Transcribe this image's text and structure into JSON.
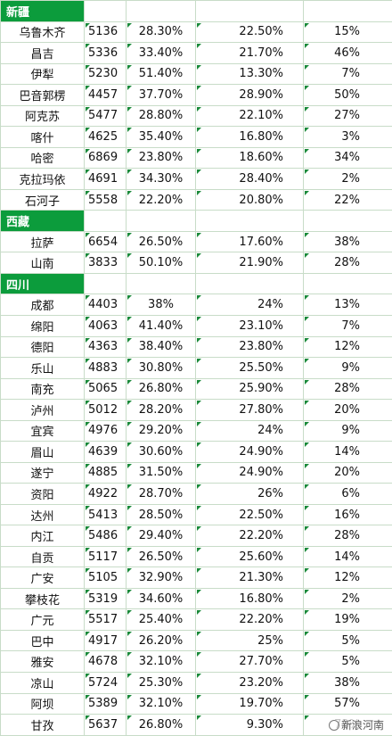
{
  "regions": [
    {
      "name": "新疆",
      "rows": [
        [
          "乌鲁木齐",
          "5136",
          "28.30%",
          "22.50%",
          "15%"
        ],
        [
          "昌吉",
          "5336",
          "33.40%",
          "21.70%",
          "46%"
        ],
        [
          "伊犁",
          "5230",
          "51.40%",
          "13.30%",
          "7%"
        ],
        [
          "巴音郭楞",
          "4457",
          "37.70%",
          "28.90%",
          "50%"
        ],
        [
          "阿克苏",
          "5477",
          "28.80%",
          "22.10%",
          "27%"
        ],
        [
          "喀什",
          "4625",
          "35.40%",
          "16.80%",
          "3%"
        ],
        [
          "哈密",
          "6869",
          "23.80%",
          "18.60%",
          "34%"
        ],
        [
          "克拉玛依",
          "4691",
          "34.30%",
          "28.40%",
          "2%"
        ],
        [
          "石河子",
          "5558",
          "22.20%",
          "20.80%",
          "22%"
        ]
      ]
    },
    {
      "name": "西藏",
      "rows": [
        [
          "拉萨",
          "6654",
          "26.50%",
          "17.60%",
          "38%"
        ],
        [
          "山南",
          "3833",
          "50.10%",
          "21.90%",
          "28%"
        ]
      ]
    },
    {
      "name": "四川",
      "rows": [
        [
          "成都",
          "4403",
          "38%",
          "24%",
          "13%"
        ],
        [
          "绵阳",
          "4063",
          "41.40%",
          "23.10%",
          "7%"
        ],
        [
          "德阳",
          "4363",
          "38.40%",
          "23.80%",
          "12%"
        ],
        [
          "乐山",
          "4883",
          "30.80%",
          "25.50%",
          "9%"
        ],
        [
          "南充",
          "5065",
          "26.80%",
          "25.90%",
          "28%"
        ],
        [
          "泸州",
          "5012",
          "28.20%",
          "27.80%",
          "20%"
        ],
        [
          "宜宾",
          "4976",
          "29.20%",
          "24%",
          "9%"
        ],
        [
          "眉山",
          "4639",
          "30.60%",
          "24.90%",
          "14%"
        ],
        [
          "遂宁",
          "4885",
          "31.50%",
          "24.90%",
          "20%"
        ],
        [
          "资阳",
          "4922",
          "28.70%",
          "26%",
          "6%"
        ],
        [
          "达州",
          "5413",
          "28.50%",
          "22.50%",
          "16%"
        ],
        [
          "内江",
          "5486",
          "29.40%",
          "22.20%",
          "28%"
        ],
        [
          "自贡",
          "5117",
          "26.50%",
          "25.60%",
          "14%"
        ],
        [
          "广安",
          "5105",
          "32.90%",
          "21.30%",
          "12%"
        ],
        [
          "攀枝花",
          "5319",
          "34.60%",
          "16.80%",
          "2%"
        ],
        [
          "广元",
          "5517",
          "25.40%",
          "22.20%",
          "19%"
        ],
        [
          "巴中",
          "4917",
          "26.20%",
          "25%",
          "5%"
        ],
        [
          "雅安",
          "4678",
          "32.10%",
          "27.70%",
          "5%"
        ],
        [
          "凉山",
          "5724",
          "25.30%",
          "23.20%",
          "38%"
        ],
        [
          "阿坝",
          "5389",
          "32.10%",
          "19.70%",
          "57%"
        ],
        [
          "甘孜",
          "5637",
          "26.80%",
          "9.30%",
          "73%"
        ]
      ]
    }
  ],
  "watermark": "新浪河南"
}
